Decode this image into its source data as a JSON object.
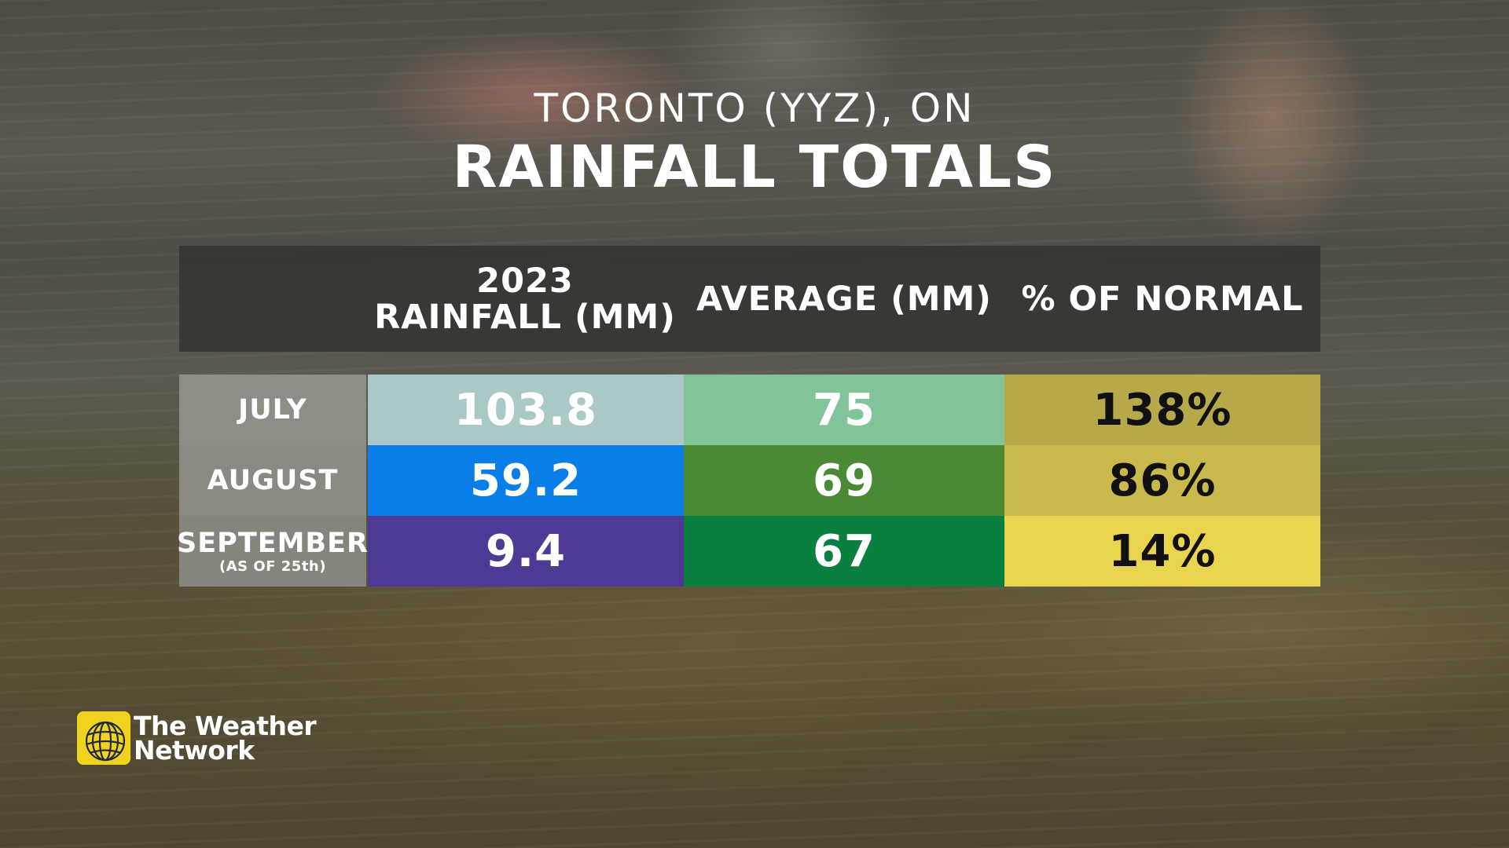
{
  "title": {
    "location": "TORONTO (YYZ), ON",
    "main": "RAINFALL TOTALS"
  },
  "columns": {
    "rainfall_line1": "2023",
    "rainfall_line2": "RAINFALL (MM)",
    "average": "AVERAGE (MM)",
    "percent": "% OF NORMAL"
  },
  "rows": [
    {
      "month": "JULY",
      "note": "",
      "rainfall": "103.8",
      "average": "75",
      "percent": "138%"
    },
    {
      "month": "AUGUST",
      "note": "",
      "rainfall": "59.2",
      "average": "69",
      "percent": "86%"
    },
    {
      "month": "SEPTEMBER",
      "note": "(AS OF 25th)",
      "rainfall": "9.4",
      "average": "67",
      "percent": "14%"
    }
  ],
  "colors": {
    "rainfall": [
      "#a9c8c6",
      "#0a7ee8",
      "#4e3a95"
    ],
    "average": [
      "#82c49a",
      "#4a8a35",
      "#0a8040"
    ],
    "percent": [
      "#b7a94a",
      "#c9b84b",
      "#e8d44e"
    ],
    "label_bg": [
      "#8e8e86",
      "#8a8a82",
      "#85857c"
    ],
    "text_light": "#ffffff",
    "text_dark": "#111111"
  },
  "logo": {
    "line1": "The Weather",
    "line2": "Network",
    "icon": "globe-icon"
  },
  "chart_data": {
    "type": "table",
    "title": "RAINFALL TOTALS",
    "subtitle": "TORONTO (YYZ), ON",
    "columns": [
      "2023 RAINFALL (MM)",
      "AVERAGE (MM)",
      "% OF NORMAL"
    ],
    "categories": [
      "JULY",
      "AUGUST",
      "SEPTEMBER"
    ],
    "series": [
      {
        "name": "2023 RAINFALL (MM)",
        "values": [
          103.8,
          59.2,
          9.4
        ]
      },
      {
        "name": "AVERAGE (MM)",
        "values": [
          75,
          69,
          67
        ]
      },
      {
        "name": "% OF NORMAL",
        "values": [
          138,
          86,
          14
        ]
      }
    ]
  }
}
